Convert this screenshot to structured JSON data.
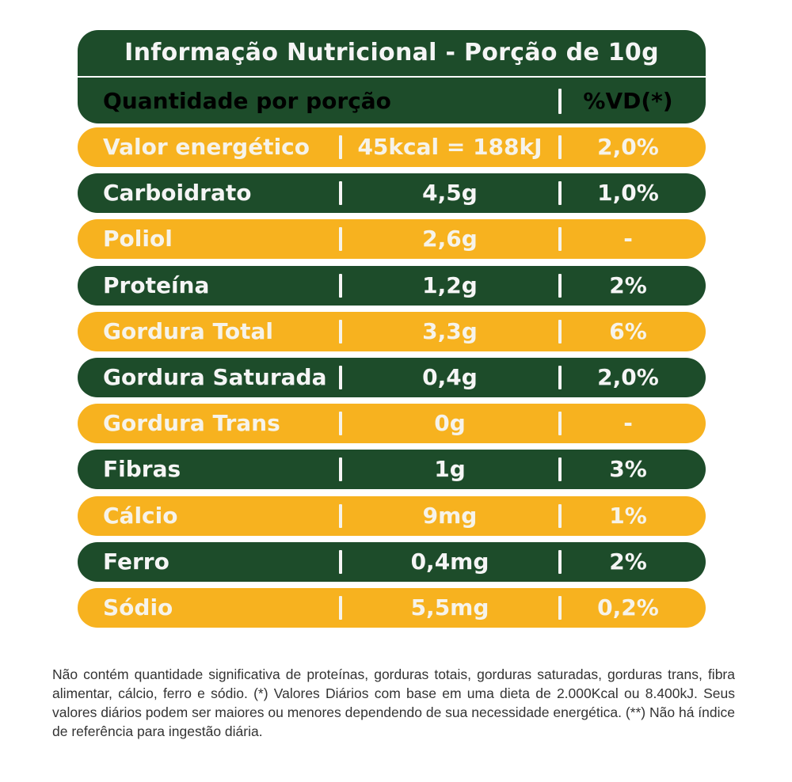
{
  "table": {
    "title": "Informação Nutricional - Porção de 10g",
    "header": {
      "quantity_label": "Quantidade por porção",
      "vd_label": "%VD(*)"
    },
    "rows": [
      {
        "name": "Valor energético",
        "amount": "45kcal = 188kJ",
        "vd": "2,0%",
        "color": "orange"
      },
      {
        "name": "Carboidrato",
        "amount": "4,5g",
        "vd": "1,0%",
        "color": "green"
      },
      {
        "name": "Poliol",
        "amount": "2,6g",
        "vd": "-",
        "color": "orange"
      },
      {
        "name": "Proteína",
        "amount": "1,2g",
        "vd": "2%",
        "color": "green"
      },
      {
        "name": "Gordura Total",
        "amount": "3,3g",
        "vd": "6%",
        "color": "orange"
      },
      {
        "name": "Gordura Saturada",
        "amount": "0,4g",
        "vd": "2,0%",
        "color": "green"
      },
      {
        "name": "Gordura Trans",
        "amount": "0g",
        "vd": "-",
        "color": "orange"
      },
      {
        "name": "Fibras",
        "amount": "1g",
        "vd": "3%",
        "color": "green"
      },
      {
        "name": "Cálcio",
        "amount": "9mg",
        "vd": "1%",
        "color": "orange"
      },
      {
        "name": "Ferro",
        "amount": "0,4mg",
        "vd": "2%",
        "color": "green"
      },
      {
        "name": "Sódio",
        "amount": "5,5mg",
        "vd": "0,2%",
        "color": "orange"
      }
    ]
  },
  "footnote": "Não contém quantidade significativa de proteínas, gorduras totais, gorduras saturadas, gorduras trans, fibra alimentar, cálcio, ferro e sódio. (*) Valores Diários com base em uma dieta de 2.000Kcal ou 8.400kJ. Seus valores diários podem ser maiores ou menores dependendo de sua necessidade energética. (**) Não há índice de referência para ingestão diária.",
  "colors": {
    "green": "#1d4c2a",
    "orange": "#f7b21f"
  }
}
